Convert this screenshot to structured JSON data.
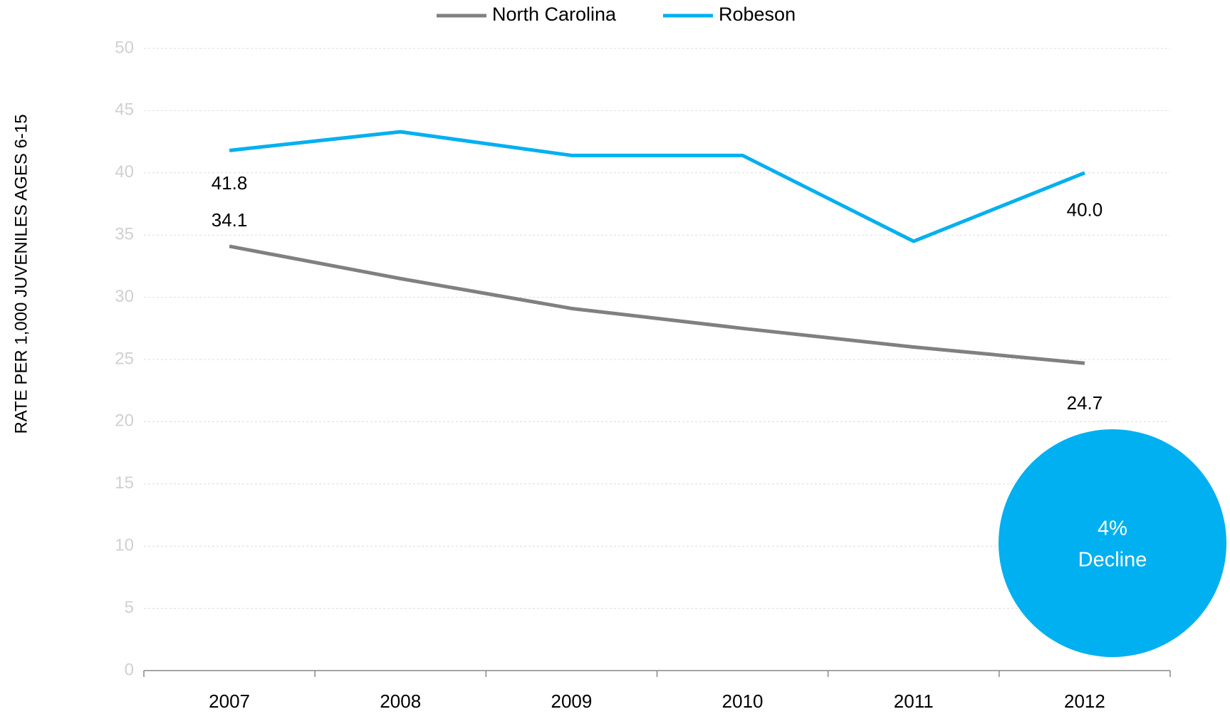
{
  "chart_data": {
    "type": "line",
    "y_axis_label": "RATE PER 1,000  JUVENILES AGES 6-15",
    "categories": [
      "2007",
      "2008",
      "2009",
      "2010",
      "2011",
      "2012"
    ],
    "series": [
      {
        "name": "North Carolina",
        "color": "#808080",
        "values": [
          34.1,
          31.5,
          29.1,
          27.5,
          26.0,
          24.7
        ],
        "value_labels": [
          "34.1",
          null,
          null,
          null,
          null,
          "24.7"
        ]
      },
      {
        "name": "Robeson",
        "color": "#00b0f0",
        "values": [
          41.8,
          43.3,
          41.4,
          41.4,
          34.5,
          40.0
        ],
        "value_labels": [
          "41.8",
          null,
          null,
          null,
          null,
          "40.0"
        ]
      }
    ],
    "ylim": [
      0,
      50
    ],
    "yticks": [
      0,
      5,
      10,
      15,
      20,
      25,
      30,
      35,
      40,
      45,
      50
    ],
    "grid": true,
    "legend": "top",
    "annotation": {
      "lines": [
        "4%",
        "Decline"
      ],
      "color": "#00b0f0"
    }
  }
}
